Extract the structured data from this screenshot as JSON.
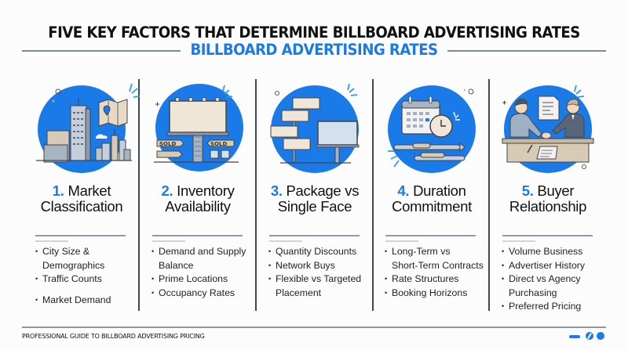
{
  "header": {
    "title": "FIVE KEY FACTORS THAT DETERMINE BILLBOARD ADVERTISING RATES",
    "subtitle": "BILLBOARD ADVERTISING RATES"
  },
  "colors": {
    "accent": "#1a7ae8",
    "text": "#111111",
    "divider": "#3d4856",
    "background": "#fcfcfc"
  },
  "factors": [
    {
      "number": "1.",
      "title_line1": "Market",
      "title_line2": "Classification",
      "icon": "city-map-icon",
      "bullets": [
        "City Size &",
        "Demographics",
        "Traffic Counts",
        "Market Demand"
      ]
    },
    {
      "number": "2.",
      "title_line1": "Inventory",
      "title_line2": "Availability",
      "icon": "billboard-sold-icon",
      "sold_label": "SOLD",
      "bullets": [
        "Demand and Supply",
        "Balance",
        "Prime Locations",
        "Occupancy Rates"
      ]
    },
    {
      "number": "3.",
      "title_line1": "Package vs",
      "title_line2": "Single Face",
      "icon": "multiple-billboards-icon",
      "bullets": [
        "Quantity Discounts",
        "Network Buys",
        "Flexible vs Targeted",
        "Placement"
      ]
    },
    {
      "number": "4.",
      "title_line1": "Duration",
      "title_line2": "Commitment",
      "icon": "calendar-clock-icon",
      "bullets": [
        "Long-Term vs",
        "Short-Term Contracts",
        "Rate Structures",
        "Booking Horizons"
      ]
    },
    {
      "number": "5.",
      "title_line1": "Buyer",
      "title_line2": "Relationship",
      "icon": "handshake-icon",
      "bullets": [
        "Volume Business",
        "Advertiser History",
        "Direct vs Agency",
        "Purchasing",
        "Preferred Pricing"
      ]
    }
  ],
  "footer": {
    "text": "PROFESSIONAL GUIDE TO BILLBOARD ADVERTISING PRICING"
  }
}
